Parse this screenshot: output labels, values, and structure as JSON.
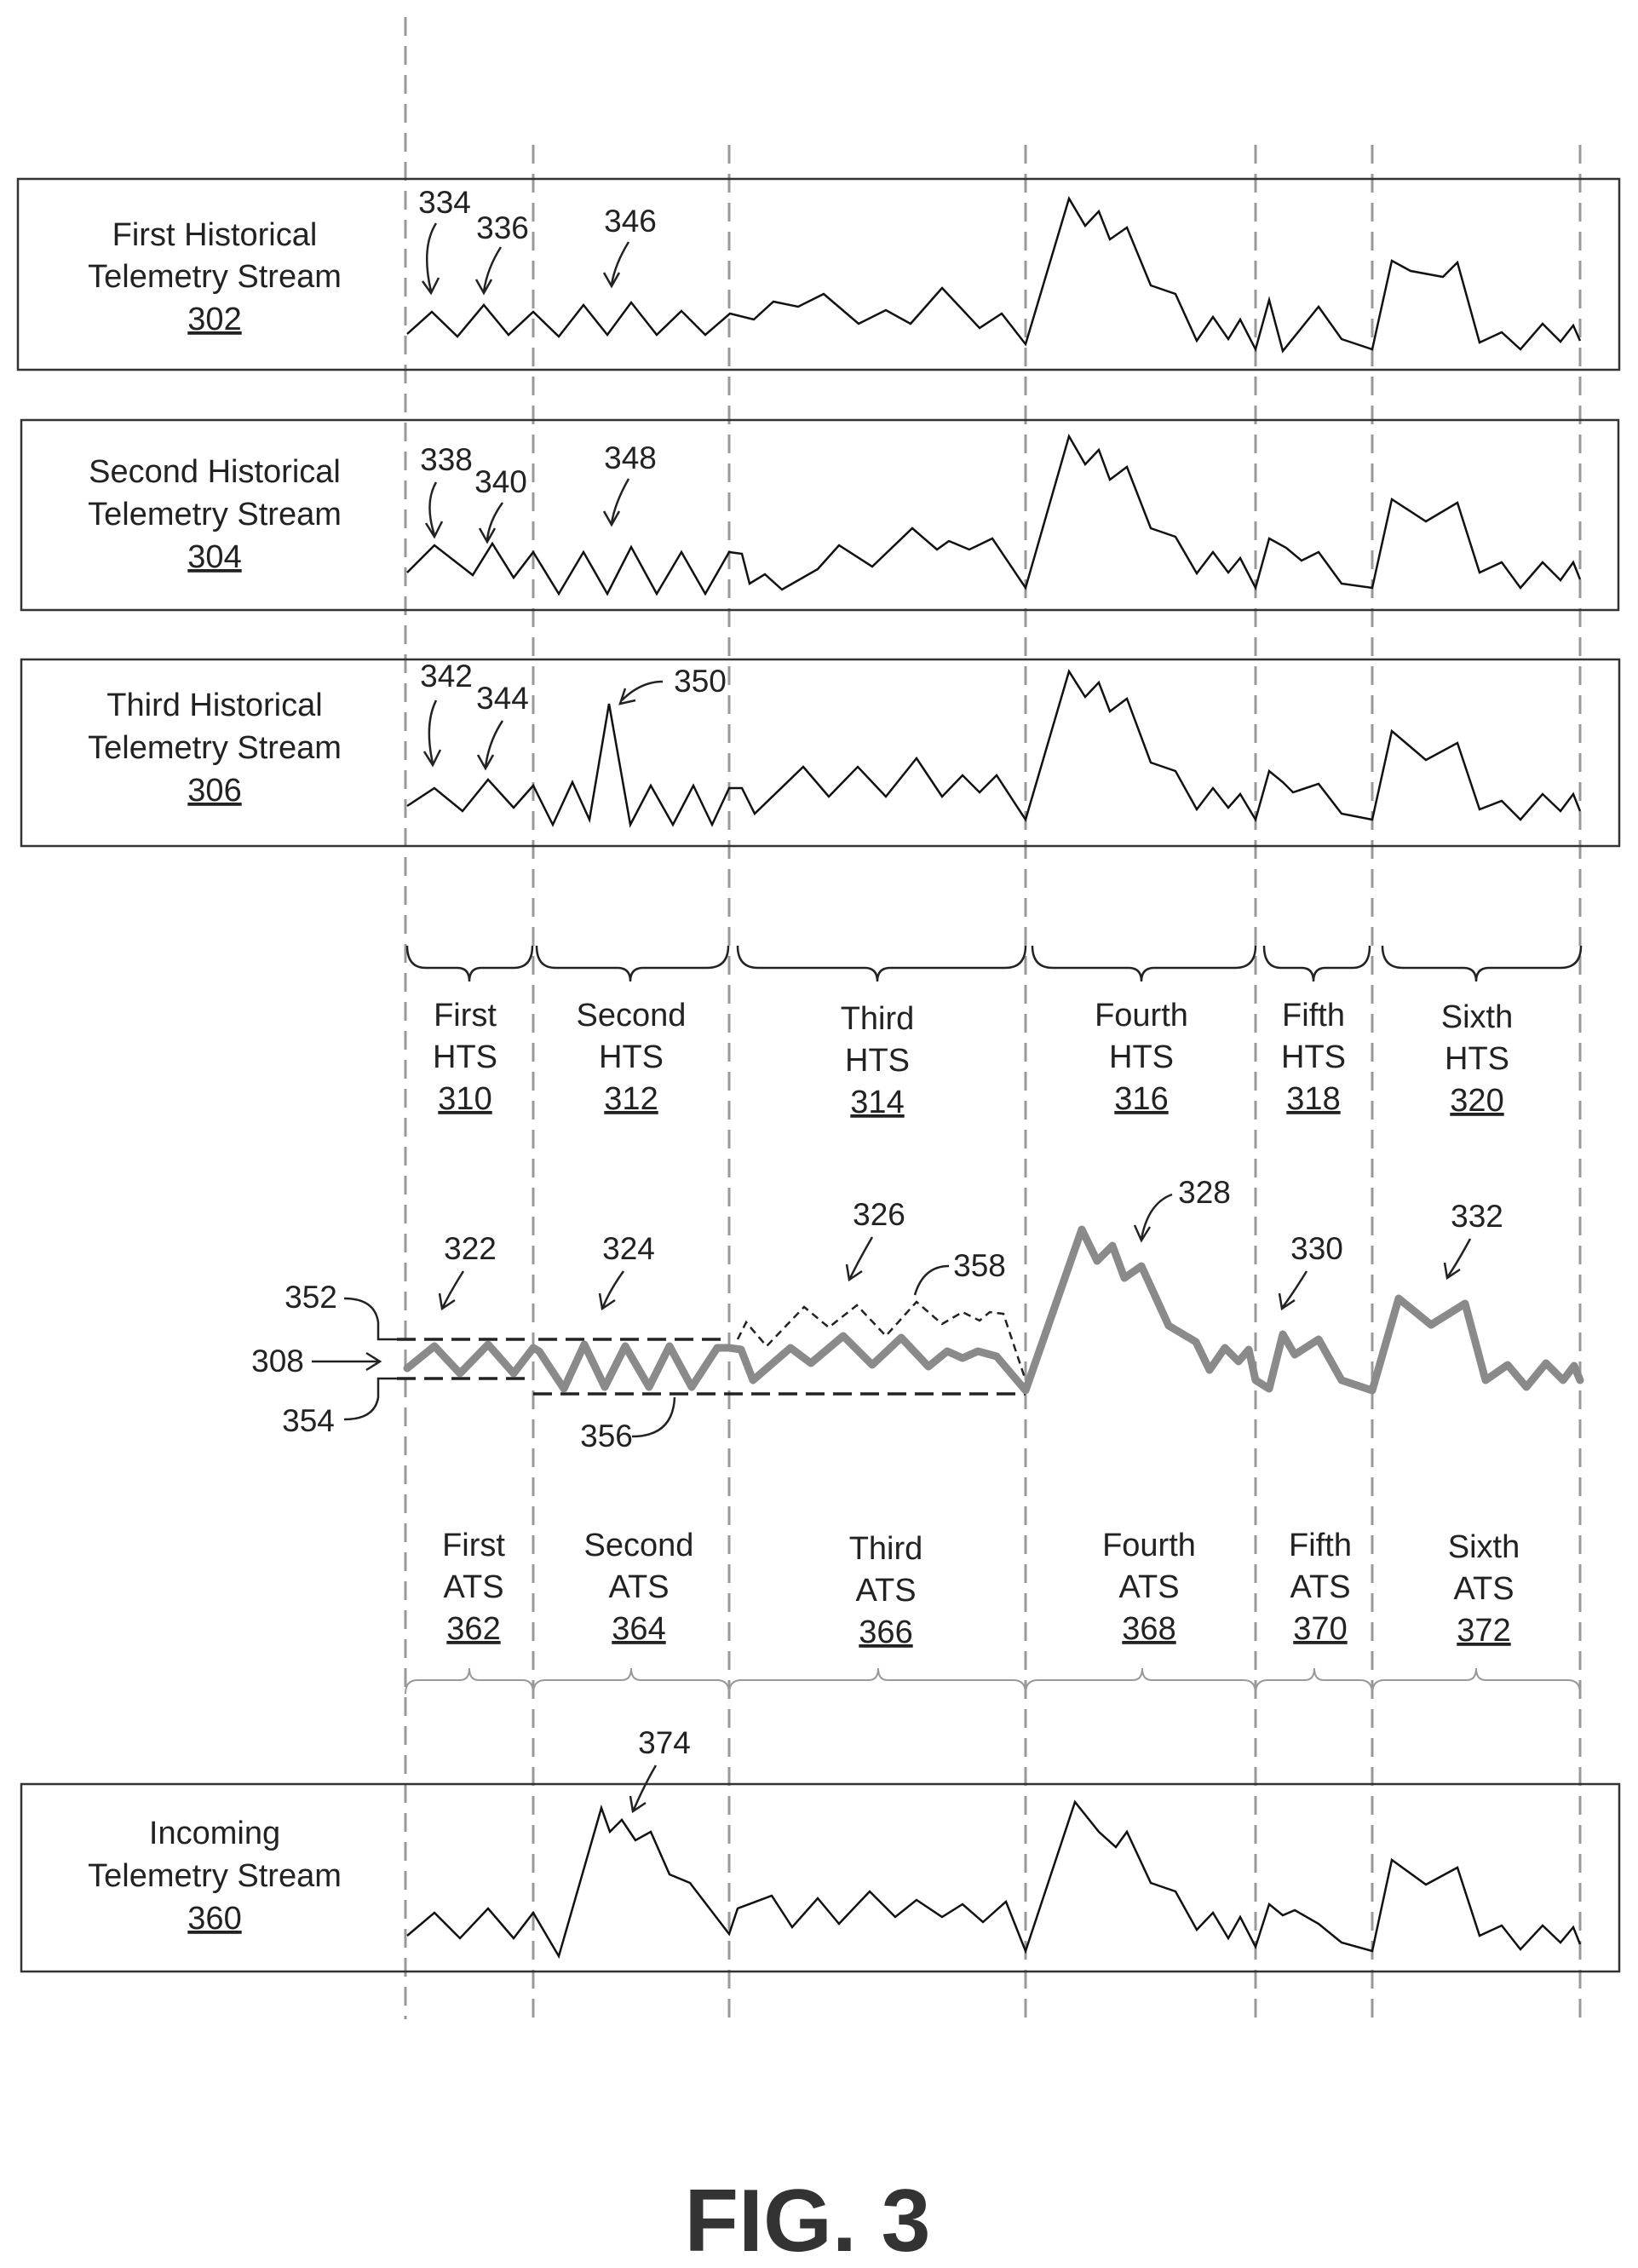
{
  "streams": {
    "first": {
      "line1": "First Historical",
      "line2": "Telemetry Stream",
      "ref": "302"
    },
    "second": {
      "line1": "Second Historical",
      "line2": "Telemetry Stream",
      "ref": "304"
    },
    "third": {
      "line1": "Third Historical",
      "line2": "Telemetry Stream",
      "ref": "306"
    },
    "incoming": {
      "line1": "Incoming",
      "line2": "Telemetry Stream",
      "ref": "360"
    }
  },
  "hts": [
    {
      "word": "First",
      "abbr": "HTS",
      "ref": "310"
    },
    {
      "word": "Second",
      "abbr": "HTS",
      "ref": "312"
    },
    {
      "word": "Third",
      "abbr": "HTS",
      "ref": "314"
    },
    {
      "word": "Fourth",
      "abbr": "HTS",
      "ref": "316"
    },
    {
      "word": "Fifth",
      "abbr": "HTS",
      "ref": "318"
    },
    {
      "word": "Sixth",
      "abbr": "HTS",
      "ref": "320"
    }
  ],
  "ats": [
    {
      "word": "First",
      "abbr": "ATS",
      "ref": "362"
    },
    {
      "word": "Second",
      "abbr": "ATS",
      "ref": "364"
    },
    {
      "word": "Third",
      "abbr": "ATS",
      "ref": "366"
    },
    {
      "word": "Fourth",
      "abbr": "ATS",
      "ref": "368"
    },
    {
      "word": "Fifth",
      "abbr": "ATS",
      "ref": "370"
    },
    {
      "word": "Sixth",
      "abbr": "ATS",
      "ref": "372"
    }
  ],
  "callouts": {
    "n334": "334",
    "n336": "336",
    "n346": "346",
    "n338": "338",
    "n340": "340",
    "n348": "348",
    "n342": "342",
    "n344": "344",
    "n350": "350",
    "n322": "322",
    "n324": "324",
    "n326": "326",
    "n358": "358",
    "n328": "328",
    "n330": "330",
    "n332": "332",
    "n352": "352",
    "n308": "308",
    "n354": "354",
    "n356": "356",
    "n374": "374"
  },
  "figure_label": "FIG. 3",
  "colors": {
    "line": "#111111",
    "model": "#8a8a8a",
    "divider": "#999999"
  }
}
